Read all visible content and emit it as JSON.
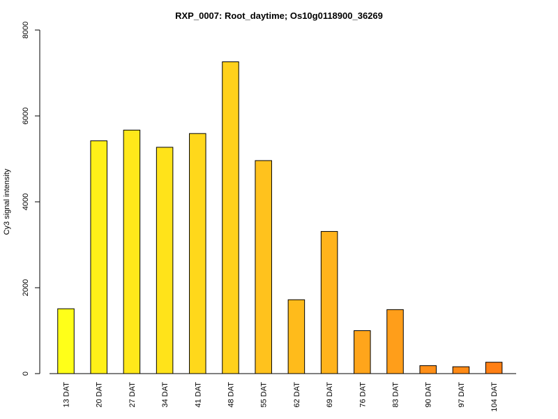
{
  "chart_data": {
    "type": "bar",
    "title": "RXP_0007: Root_daytime; Os10g0118900_36269",
    "xlabel": "",
    "ylabel": "Cy3 signal intensity",
    "ylim": [
      0,
      8000
    ],
    "yticks": [
      0,
      2000,
      4000,
      6000,
      8000
    ],
    "categories": [
      "13 DAT",
      "20 DAT",
      "27 DAT",
      "34 DAT",
      "41 DAT",
      "48 DAT",
      "55 DAT",
      "62 DAT",
      "69 DAT",
      "76 DAT",
      "83 DAT",
      "90 DAT",
      "97 DAT",
      "104 DAT"
    ],
    "values": [
      1510,
      5420,
      5670,
      5270,
      5590,
      7260,
      4960,
      1720,
      3310,
      1000,
      1490,
      185,
      160,
      265
    ],
    "colors": [
      "#FFFF19",
      "#FFF018",
      "#FFE81A",
      "#FFE31A",
      "#FFD81B",
      "#FFD11C",
      "#FFC21D",
      "#FFBB1B",
      "#FFB31C",
      "#FFA51B",
      "#FF9E1A",
      "#FF8F18",
      "#FF8A16",
      "#FF7F14"
    ],
    "grid": false,
    "legend": "none"
  }
}
